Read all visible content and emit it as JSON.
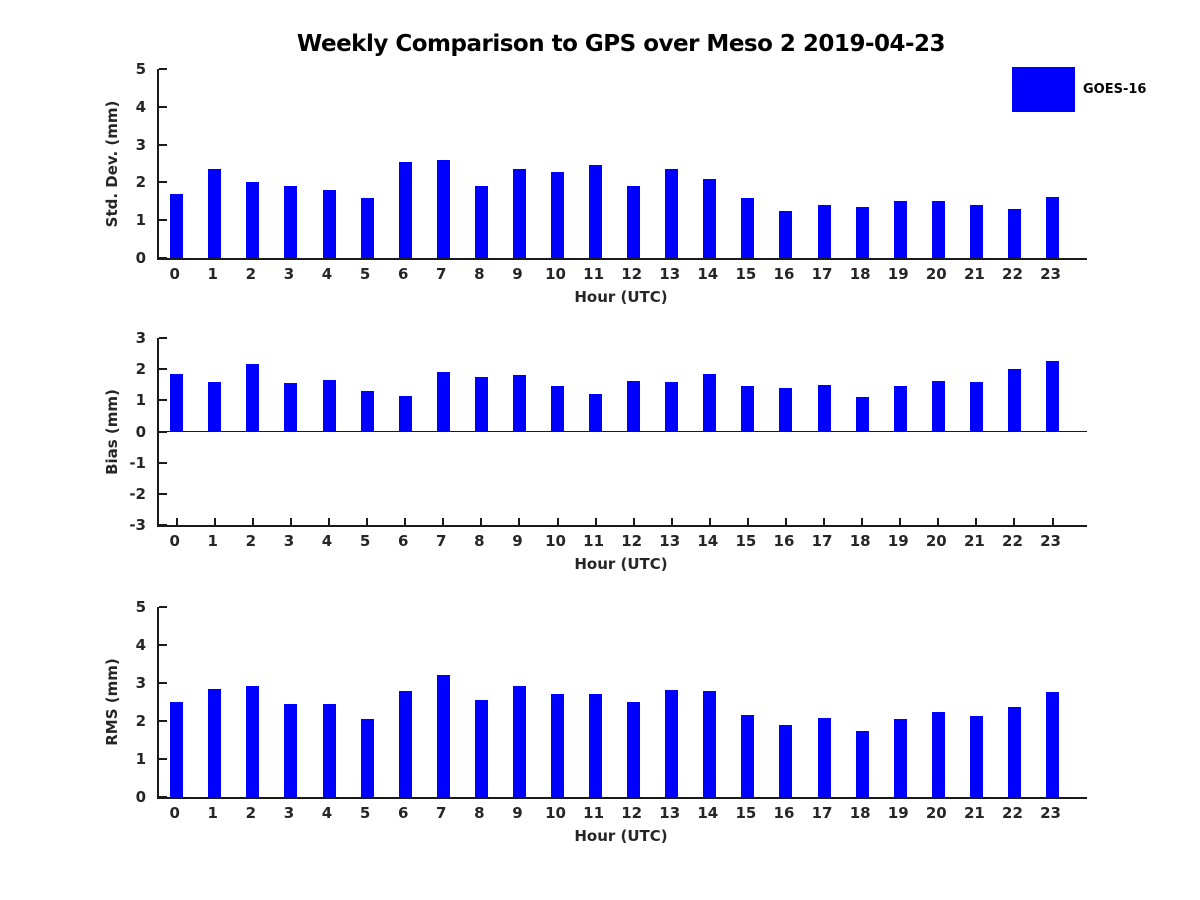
{
  "figure": {
    "title": "Weekly Comparison to GPS over Meso 2 2019-04-23",
    "background_color": "#ffffff",
    "bar_color": "#0000ff",
    "axis_color": "#1a1a1a"
  },
  "legend": {
    "label": "GOES-16",
    "swatch_color": "#0000ff",
    "position": "top-right"
  },
  "chart_data": [
    {
      "type": "bar",
      "name": "std-dev",
      "ylabel": "Std. Dev. (mm)",
      "xlabel": "Hour (UTC)",
      "ylim": [
        0,
        5
      ],
      "yticks": [
        0,
        1,
        2,
        3,
        4,
        5
      ],
      "grid": false,
      "categories": [
        "0",
        "1",
        "2",
        "3",
        "4",
        "5",
        "6",
        "7",
        "8",
        "9",
        "10",
        "11",
        "12",
        "13",
        "14",
        "15",
        "16",
        "17",
        "18",
        "19",
        "20",
        "21",
        "22",
        "23"
      ],
      "series": [
        {
          "name": "GOES-16",
          "values": [
            1.7,
            2.35,
            2.0,
            1.9,
            1.8,
            1.6,
            2.55,
            2.6,
            1.9,
            2.35,
            2.27,
            2.45,
            1.9,
            2.35,
            2.1,
            1.6,
            1.25,
            1.4,
            1.35,
            1.5,
            1.5,
            1.4,
            1.3,
            1.62
          ]
        }
      ]
    },
    {
      "type": "bar",
      "name": "bias",
      "ylabel": "Bias (mm)",
      "xlabel": "Hour (UTC)",
      "ylim": [
        -3,
        3
      ],
      "yticks": [
        3,
        2,
        1,
        0,
        -1,
        -2,
        -3
      ],
      "grid": false,
      "categories": [
        "0",
        "1",
        "2",
        "3",
        "4",
        "5",
        "6",
        "7",
        "8",
        "9",
        "10",
        "11",
        "12",
        "13",
        "14",
        "15",
        "16",
        "17",
        "18",
        "19",
        "20",
        "21",
        "22",
        "23"
      ],
      "series": [
        {
          "name": "GOES-16",
          "values": [
            1.85,
            1.6,
            2.15,
            1.55,
            1.65,
            1.3,
            1.15,
            1.9,
            1.75,
            1.8,
            1.45,
            1.2,
            1.62,
            1.6,
            1.85,
            1.45,
            1.4,
            1.5,
            1.1,
            1.45,
            1.63,
            1.6,
            2.0,
            2.25
          ]
        }
      ]
    },
    {
      "type": "bar",
      "name": "rms",
      "ylabel": "RMS (mm)",
      "xlabel": "Hour (UTC)",
      "ylim": [
        0,
        5
      ],
      "yticks": [
        0,
        1,
        2,
        3,
        4,
        5
      ],
      "grid": false,
      "categories": [
        "0",
        "1",
        "2",
        "3",
        "4",
        "5",
        "6",
        "7",
        "8",
        "9",
        "10",
        "11",
        "12",
        "13",
        "14",
        "15",
        "16",
        "17",
        "18",
        "19",
        "20",
        "21",
        "22",
        "23"
      ],
      "series": [
        {
          "name": "GOES-16",
          "values": [
            2.5,
            2.85,
            2.93,
            2.45,
            2.45,
            2.05,
            2.78,
            3.2,
            2.55,
            2.93,
            2.7,
            2.72,
            2.5,
            2.82,
            2.8,
            2.15,
            1.9,
            2.07,
            1.75,
            2.05,
            2.25,
            2.12,
            2.37,
            2.77
          ]
        }
      ]
    }
  ]
}
